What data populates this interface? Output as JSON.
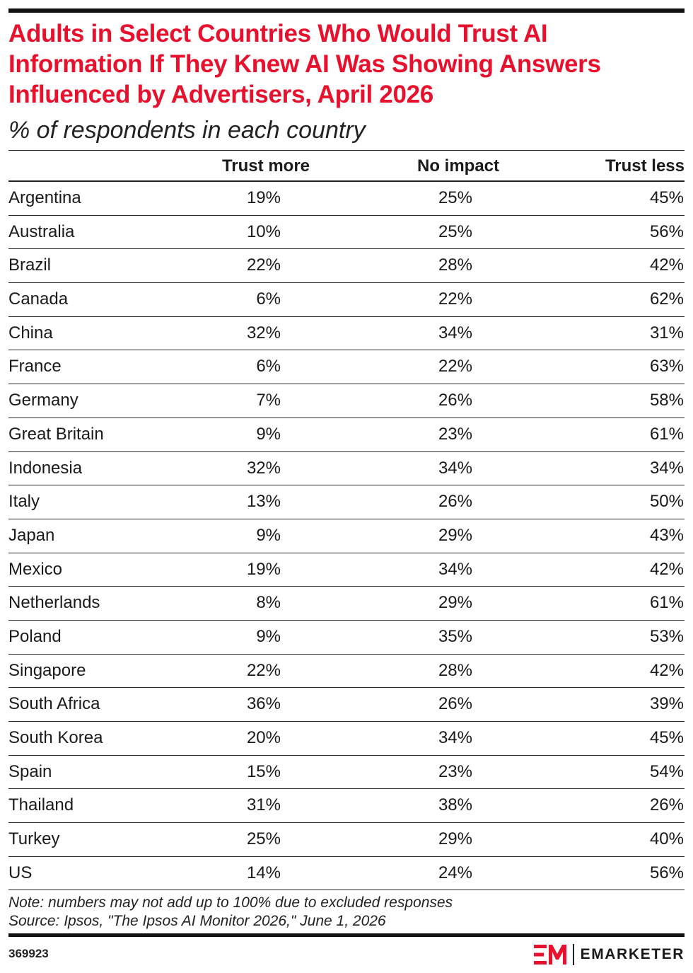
{
  "chart_data": {
    "type": "table",
    "title": "Adults in Select Countries Who Would Trust AI Information If They Knew AI Was Showing Answers Influenced by Advertisers, April 2026",
    "subtitle": "% of respondents in each country",
    "columns": [
      "Trust more",
      "No impact",
      "Trust less"
    ],
    "rows": [
      {
        "country": "Argentina",
        "values": [
          "19%",
          "25%",
          "45%"
        ]
      },
      {
        "country": "Australia",
        "values": [
          "10%",
          "25%",
          "56%"
        ]
      },
      {
        "country": "Brazil",
        "values": [
          "22%",
          "28%",
          "42%"
        ]
      },
      {
        "country": "Canada",
        "values": [
          "6%",
          "22%",
          "62%"
        ]
      },
      {
        "country": "China",
        "values": [
          "32%",
          "34%",
          "31%"
        ]
      },
      {
        "country": "France",
        "values": [
          "6%",
          "22%",
          "63%"
        ]
      },
      {
        "country": "Germany",
        "values": [
          "7%",
          "26%",
          "58%"
        ]
      },
      {
        "country": "Great Britain",
        "values": [
          "9%",
          "23%",
          "61%"
        ]
      },
      {
        "country": "Indonesia",
        "values": [
          "32%",
          "34%",
          "34%"
        ]
      },
      {
        "country": "Italy",
        "values": [
          "13%",
          "26%",
          "50%"
        ]
      },
      {
        "country": "Japan",
        "values": [
          "9%",
          "29%",
          "43%"
        ]
      },
      {
        "country": "Mexico",
        "values": [
          "19%",
          "34%",
          "42%"
        ]
      },
      {
        "country": "Netherlands",
        "values": [
          "8%",
          "29%",
          "61%"
        ]
      },
      {
        "country": "Poland",
        "values": [
          "9%",
          "35%",
          "53%"
        ]
      },
      {
        "country": "Singapore",
        "values": [
          "22%",
          "28%",
          "42%"
        ]
      },
      {
        "country": "South Africa",
        "values": [
          "36%",
          "26%",
          "39%"
        ]
      },
      {
        "country": "South Korea",
        "values": [
          "20%",
          "34%",
          "45%"
        ]
      },
      {
        "country": "Spain",
        "values": [
          "15%",
          "23%",
          "54%"
        ]
      },
      {
        "country": "Thailand",
        "values": [
          "31%",
          "38%",
          "26%"
        ]
      },
      {
        "country": "Turkey",
        "values": [
          "25%",
          "29%",
          "40%"
        ]
      },
      {
        "country": "US",
        "values": [
          "14%",
          "24%",
          "56%"
        ]
      }
    ],
    "note": "Note: numbers may not add up to 100% due to excluded responses",
    "source": "Source: Ipsos, \"The Ipsos AI Monitor 2026,\" June 1, 2026"
  },
  "footer": {
    "chart_id": "369923",
    "brand": "EMARKETER",
    "brand_logo_icon": "emarketer-em-logo-icon",
    "brand_color": "#e8112d"
  }
}
